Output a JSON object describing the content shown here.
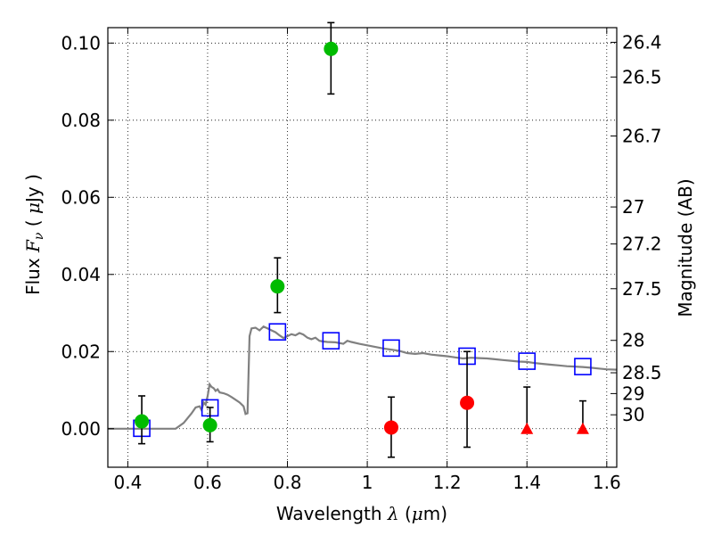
{
  "chart_data": {
    "type": "scatter",
    "xlabel": "Wavelength  λ (μm)",
    "ylabel": "Flux  F_ν  ( μJy )",
    "ylabel_parts": {
      "prefix": "Flux  ",
      "var": "F",
      "sub": "ν",
      "mid": "  ( ",
      "unit_greek": "μ",
      "unit": "Jy )"
    },
    "xlabel_parts": {
      "prefix": "Wavelength  ",
      "var": "λ",
      "mid": " (",
      "unit_greek": "μ",
      "unit": "m)"
    },
    "y2label": "Magnitude (AB)",
    "xlim": [
      0.35,
      1.625
    ],
    "ylim": [
      -0.01,
      0.104
    ],
    "grid": true,
    "x_ticks": [
      {
        "value": 0.4,
        "label": "0.4"
      },
      {
        "value": 0.6,
        "label": "0.6"
      },
      {
        "value": 0.8,
        "label": "0.8"
      },
      {
        "value": 1.0,
        "label": "1"
      },
      {
        "value": 1.2,
        "label": "1.2"
      },
      {
        "value": 1.4,
        "label": "1.4"
      },
      {
        "value": 1.6,
        "label": "1.6"
      }
    ],
    "y_ticks": [
      {
        "value": 0.0,
        "label": "0.00"
      },
      {
        "value": 0.02,
        "label": "0.02"
      },
      {
        "value": 0.04,
        "label": "0.04"
      },
      {
        "value": 0.06,
        "label": "0.06"
      },
      {
        "value": 0.08,
        "label": "0.08"
      },
      {
        "value": 0.1,
        "label": "0.10"
      }
    ],
    "mag_ticks": [
      {
        "label": "26.4",
        "flux": 0.1002
      },
      {
        "label": "26.5",
        "flux": 0.0912
      },
      {
        "label": "26.7",
        "flux": 0.0759
      },
      {
        "label": "27",
        "flux": 0.0575
      },
      {
        "label": "27.2",
        "flux": 0.0479
      },
      {
        "label": "27.5",
        "flux": 0.0363
      },
      {
        "label": "28",
        "flux": 0.0229
      },
      {
        "label": "28.5",
        "flux": 0.0145
      },
      {
        "label": "29",
        "flux": 0.0091
      },
      {
        "label": "30",
        "flux": 0.0036
      }
    ],
    "model_curve": {
      "color": "#808080",
      "points": [
        [
          0.35,
          0.0
        ],
        [
          0.52,
          0.0
        ],
        [
          0.54,
          0.0015
        ],
        [
          0.56,
          0.004
        ],
        [
          0.57,
          0.0055
        ],
        [
          0.58,
          0.0058
        ],
        [
          0.585,
          0.0048
        ],
        [
          0.59,
          0.0068
        ],
        [
          0.595,
          0.0062
        ],
        [
          0.6,
          0.0085
        ],
        [
          0.605,
          0.0115
        ],
        [
          0.61,
          0.0108
        ],
        [
          0.615,
          0.0105
        ],
        [
          0.62,
          0.0098
        ],
        [
          0.625,
          0.0102
        ],
        [
          0.63,
          0.0094
        ],
        [
          0.64,
          0.0092
        ],
        [
          0.65,
          0.0088
        ],
        [
          0.66,
          0.0082
        ],
        [
          0.67,
          0.0075
        ],
        [
          0.68,
          0.0068
        ],
        [
          0.69,
          0.0058
        ],
        [
          0.695,
          0.0038
        ],
        [
          0.7,
          0.004
        ],
        [
          0.705,
          0.024
        ],
        [
          0.71,
          0.026
        ],
        [
          0.72,
          0.0262
        ],
        [
          0.73,
          0.0255
        ],
        [
          0.74,
          0.0265
        ],
        [
          0.75,
          0.026
        ],
        [
          0.76,
          0.0255
        ],
        [
          0.77,
          0.025
        ],
        [
          0.78,
          0.0242
        ],
        [
          0.79,
          0.0235
        ],
        [
          0.8,
          0.024
        ],
        [
          0.81,
          0.0245
        ],
        [
          0.82,
          0.0242
        ],
        [
          0.83,
          0.0248
        ],
        [
          0.84,
          0.0244
        ],
        [
          0.85,
          0.0236
        ],
        [
          0.86,
          0.0232
        ],
        [
          0.87,
          0.0236
        ],
        [
          0.88,
          0.0228
        ],
        [
          0.89,
          0.0226
        ],
        [
          0.9,
          0.0225
        ],
        [
          0.92,
          0.0224
        ],
        [
          0.94,
          0.022
        ],
        [
          0.95,
          0.0228
        ],
        [
          0.96,
          0.0225
        ],
        [
          0.98,
          0.022
        ],
        [
          1.0,
          0.0216
        ],
        [
          1.02,
          0.0212
        ],
        [
          1.04,
          0.0208
        ],
        [
          1.06,
          0.0205
        ],
        [
          1.08,
          0.0202
        ],
        [
          1.1,
          0.0196
        ],
        [
          1.12,
          0.0194
        ],
        [
          1.14,
          0.0196
        ],
        [
          1.16,
          0.0192
        ],
        [
          1.18,
          0.019
        ],
        [
          1.2,
          0.0188
        ],
        [
          1.22,
          0.0185
        ],
        [
          1.24,
          0.0182
        ],
        [
          1.26,
          0.0184
        ],
        [
          1.28,
          0.0183
        ],
        [
          1.3,
          0.0182
        ],
        [
          1.32,
          0.018
        ],
        [
          1.34,
          0.0178
        ],
        [
          1.36,
          0.0176
        ],
        [
          1.38,
          0.0174
        ],
        [
          1.4,
          0.0173
        ],
        [
          1.42,
          0.017
        ],
        [
          1.44,
          0.0168
        ],
        [
          1.46,
          0.0166
        ],
        [
          1.48,
          0.0164
        ],
        [
          1.5,
          0.0162
        ],
        [
          1.52,
          0.0161
        ],
        [
          1.54,
          0.016
        ],
        [
          1.56,
          0.0158
        ],
        [
          1.58,
          0.0156
        ],
        [
          1.6,
          0.0154
        ],
        [
          1.625,
          0.0153
        ]
      ]
    },
    "model_photometry": {
      "color": "#0000ff",
      "x": [
        0.435,
        0.606,
        0.775,
        0.909,
        1.06,
        1.25,
        1.4,
        1.54
      ],
      "y": [
        0.0001,
        0.0054,
        0.0251,
        0.0228,
        0.0209,
        0.0188,
        0.0175,
        0.0161
      ]
    },
    "detections": {
      "color": "#00bb00",
      "x": [
        0.435,
        0.606,
        0.775,
        0.909
      ],
      "y": [
        0.0019,
        0.0009,
        0.0369,
        0.0985
      ],
      "yerr_lo": [
        0.0058,
        0.0043,
        0.0068,
        0.0117
      ],
      "yerr_hi": [
        0.0066,
        0.0046,
        0.0074,
        0.0068
      ]
    },
    "nondetections": {
      "color": "#ff0000",
      "x": [
        1.06,
        1.25
      ],
      "y": [
        0.0003,
        0.0067
      ],
      "yerr_lo": [
        0.0077,
        0.0115
      ],
      "yerr_hi": [
        0.0079,
        0.0133
      ]
    },
    "upper_limits": {
      "color": "#ff0000",
      "x": [
        1.4,
        1.54
      ],
      "y": [
        0.0,
        0.0
      ],
      "yerr_hi": [
        0.0108,
        0.0072
      ]
    }
  }
}
